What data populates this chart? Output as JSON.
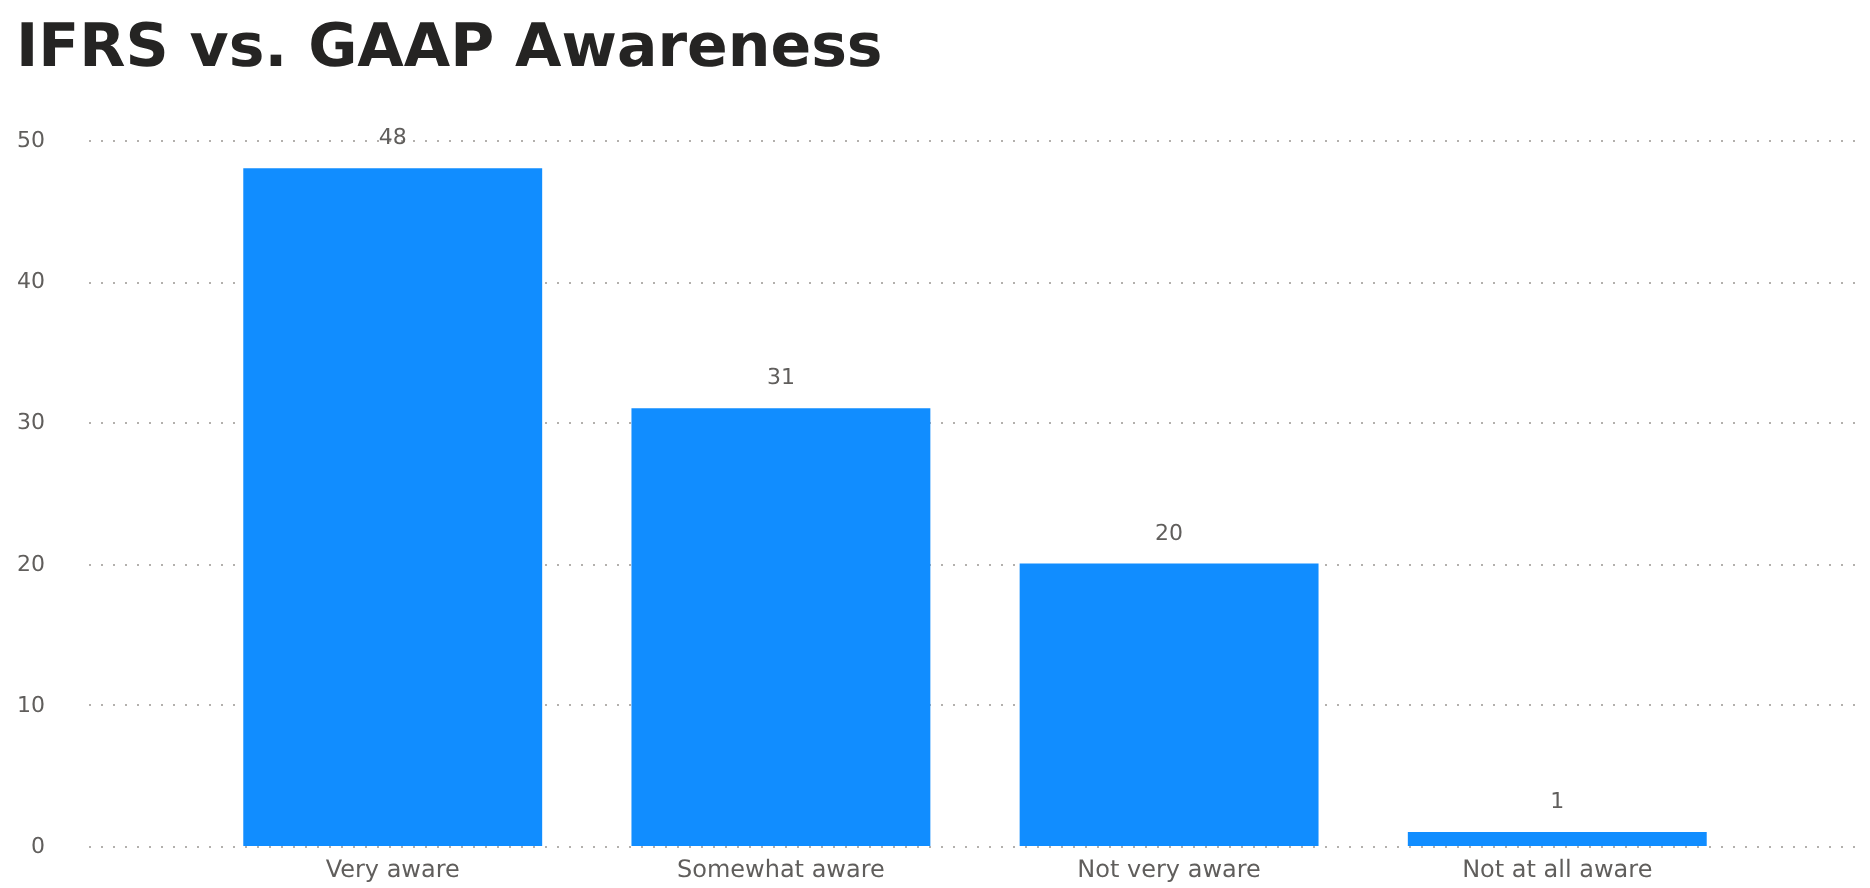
{
  "chart_data": {
    "type": "bar",
    "title": "IFRS vs. GAAP Awareness",
    "categories": [
      "Very aware",
      "Somewhat aware",
      "Not very aware",
      "Not at all aware"
    ],
    "values": [
      48,
      31,
      20,
      1
    ],
    "color": "#118dff",
    "ylim": [
      0,
      50
    ],
    "yticks": [
      0,
      10,
      20,
      30,
      40,
      50
    ],
    "grid": "y",
    "data_labels": true
  }
}
